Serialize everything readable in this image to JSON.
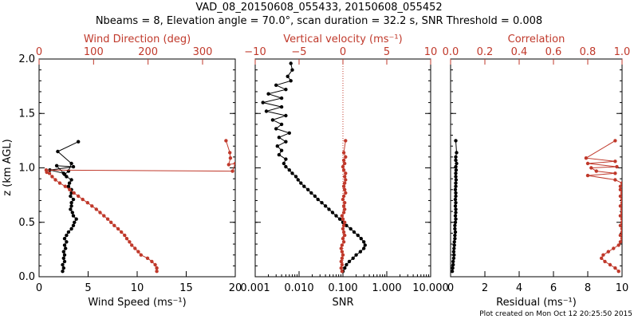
{
  "title_line1": "VAD_08_20150608_055433, 20150608_055452",
  "title_line2": "Nbeams = 8, Elevation angle = 70.0°, scan duration = 32.2 s, SNR Threshold = 0.008",
  "footer": "Plot created on Mon Oct 12 20:25:50 2015",
  "ylabel": "z (km AGL)",
  "colors": {
    "black": "#000000",
    "red": "#c0392b"
  },
  "chart_data": [
    {
      "type": "line",
      "panel": "wind",
      "xlabel": "Wind Speed (ms⁻¹)",
      "xlim": [
        0,
        20
      ],
      "xticks": [
        "0",
        "5",
        "10",
        "15",
        "20"
      ],
      "top_label": "Wind Direction (deg)",
      "top_lim": [
        0,
        360
      ],
      "top_ticks": [
        "0",
        "100",
        "200",
        "300"
      ],
      "top_tick_values": [
        0,
        100,
        200,
        300
      ],
      "ylim": [
        0,
        2
      ],
      "yticks": [
        "0.0",
        "0.5",
        "1.0",
        "1.5",
        "2.0"
      ],
      "series": [
        {
          "name": "Wind Speed",
          "color": "#000000",
          "axis": "bottom",
          "x": [
            2.4,
            2.5,
            2.4,
            2.6,
            2.5,
            2.6,
            2.5,
            2.7,
            2.6,
            2.8,
            2.6,
            2.8,
            3.0,
            3.3,
            3.5,
            3.6,
            3.8,
            3.5,
            3.4,
            3.2,
            3.3,
            3.3,
            3.5,
            3.2,
            3.3,
            3.3,
            3.0,
            3.1,
            3.3,
            2.8,
            2.5,
            1.1,
            3.5,
            1.8,
            2.6,
            3.0,
            3.3,
            1.9,
            4.0
          ],
          "y": [
            0.05,
            0.08,
            0.11,
            0.14,
            0.17,
            0.2,
            0.23,
            0.26,
            0.29,
            0.32,
            0.35,
            0.38,
            0.41,
            0.44,
            0.47,
            0.5,
            0.53,
            0.56,
            0.59,
            0.62,
            0.65,
            0.68,
            0.71,
            0.74,
            0.77,
            0.8,
            0.83,
            0.86,
            0.89,
            0.92,
            0.95,
            0.98,
            1.01,
            1.02,
            0.94,
            0.97,
            1.04,
            1.15,
            1.24
          ]
        },
        {
          "name": "Wind Direction",
          "color": "#c0392b",
          "axis": "top",
          "x": [
            216,
            216,
            213,
            207,
            199,
            187,
            182,
            176,
            170,
            166,
            161,
            157,
            151,
            145,
            138,
            132,
            126,
            119,
            112,
            105,
            97,
            89,
            80,
            72,
            64,
            56,
            48,
            38,
            30,
            24,
            19,
            14,
            13,
            355,
            360,
            348,
            351,
            350,
            343
          ],
          "y": [
            0.05,
            0.08,
            0.11,
            0.14,
            0.17,
            0.2,
            0.23,
            0.26,
            0.29,
            0.32,
            0.35,
            0.38,
            0.41,
            0.44,
            0.47,
            0.5,
            0.53,
            0.56,
            0.59,
            0.62,
            0.65,
            0.68,
            0.71,
            0.74,
            0.77,
            0.8,
            0.83,
            0.86,
            0.89,
            0.92,
            0.95,
            0.96,
            0.98,
            0.97,
            1.04,
            1.03,
            1.09,
            1.14,
            1.25
          ]
        }
      ]
    },
    {
      "type": "line",
      "panel": "vertical",
      "xscale_bottom": "log",
      "xlabel": "SNR",
      "xlim": [
        0.001,
        10
      ],
      "xticks": [
        "0.001",
        "0.010",
        "0.100",
        "1.000",
        "10.000"
      ],
      "xtick_values": [
        0.001,
        0.01,
        0.1,
        1,
        10
      ],
      "top_label": "Vertical velocity (ms⁻¹)",
      "top_lim": [
        -10,
        10
      ],
      "top_ticks": [
        "−10",
        "−5",
        "0",
        "5",
        "10"
      ],
      "top_tick_values": [
        -10,
        -5,
        0,
        5,
        10
      ],
      "ylim": [
        0,
        2
      ],
      "series": [
        {
          "name": "SNR",
          "color": "#000000",
          "axis": "bottom",
          "x": [
            0.1,
            0.11,
            0.12,
            0.14,
            0.17,
            0.2,
            0.25,
            0.3,
            0.32,
            0.3,
            0.26,
            0.22,
            0.18,
            0.15,
            0.12,
            0.1,
            0.085,
            0.07,
            0.058,
            0.048,
            0.04,
            0.033,
            0.027,
            0.023,
            0.019,
            0.016,
            0.013,
            0.011,
            0.0095,
            0.0085,
            0.007,
            0.006,
            0.005,
            0.0045,
            0.005,
            0.0035,
            0.004,
            0.0032,
            0.005,
            0.0035,
            0.006,
            0.003,
            0.004,
            0.0025,
            0.005,
            0.0018,
            0.004,
            0.0015,
            0.004,
            0.002,
            0.005,
            0.003,
            0.0065,
            0.0055,
            0.007,
            0.0065
          ],
          "y": [
            0.05,
            0.08,
            0.11,
            0.14,
            0.17,
            0.2,
            0.23,
            0.26,
            0.29,
            0.32,
            0.35,
            0.38,
            0.41,
            0.44,
            0.47,
            0.5,
            0.53,
            0.56,
            0.59,
            0.62,
            0.65,
            0.68,
            0.71,
            0.74,
            0.77,
            0.8,
            0.83,
            0.86,
            0.89,
            0.92,
            0.95,
            0.98,
            1.01,
            1.04,
            1.08,
            1.12,
            1.16,
            1.2,
            1.24,
            1.28,
            1.32,
            1.36,
            1.4,
            1.44,
            1.48,
            1.52,
            1.56,
            1.6,
            1.64,
            1.68,
            1.72,
            1.76,
            1.8,
            1.84,
            1.9,
            1.96
          ]
        },
        {
          "name": "Vertical velocity",
          "color": "#c0392b",
          "axis": "top",
          "x": [
            -0.1,
            -0.2,
            -0.1,
            -0.2,
            -0.1,
            0.0,
            -0.1,
            -0.2,
            -0.1,
            0.1,
            0.0,
            0.2,
            0.1,
            0.0,
            0.1,
            0.2,
            0.0,
            -0.1,
            0.1,
            0.2,
            0.1,
            0.2,
            0.0,
            0.1,
            0.3,
            0.2,
            0.1,
            0.2,
            0.3,
            0.2,
            0.3,
            0.1,
            0.0,
            0.2,
            0.1,
            0.3,
            0.1,
            0.3
          ],
          "y": [
            0.05,
            0.08,
            0.11,
            0.14,
            0.17,
            0.2,
            0.23,
            0.26,
            0.29,
            0.32,
            0.35,
            0.38,
            0.41,
            0.44,
            0.47,
            0.5,
            0.53,
            0.56,
            0.59,
            0.62,
            0.65,
            0.68,
            0.71,
            0.74,
            0.77,
            0.8,
            0.83,
            0.86,
            0.89,
            0.92,
            0.95,
            0.98,
            1.01,
            1.04,
            1.07,
            1.1,
            1.14,
            1.25
          ]
        }
      ],
      "reference_line_top": 0
    },
    {
      "type": "line",
      "panel": "residual",
      "xlabel": "Residual (ms⁻¹)",
      "xlim": [
        0,
        10
      ],
      "xticks": [
        "0",
        "2",
        "4",
        "6",
        "8",
        "10"
      ],
      "top_label": "Correlation",
      "top_lim": [
        0,
        1
      ],
      "top_ticks": [
        "0.0",
        "0.2",
        "0.4",
        "0.6",
        "0.8",
        "1.0"
      ],
      "top_tick_values": [
        0,
        0.2,
        0.4,
        0.6,
        0.8,
        1.0
      ],
      "ylim": [
        0,
        2
      ],
      "series": [
        {
          "name": "Residual",
          "color": "#000000",
          "axis": "bottom",
          "x": [
            0.1,
            0.12,
            0.15,
            0.15,
            0.18,
            0.2,
            0.18,
            0.2,
            0.22,
            0.22,
            0.25,
            0.25,
            0.28,
            0.25,
            0.25,
            0.28,
            0.3,
            0.28,
            0.3,
            0.3,
            0.28,
            0.3,
            0.28,
            0.3,
            0.3,
            0.28,
            0.3,
            0.3,
            0.32,
            0.3,
            0.3,
            0.32,
            0.3,
            0.35,
            0.3,
            0.3,
            0.35,
            0.3
          ],
          "y": [
            0.05,
            0.08,
            0.11,
            0.14,
            0.17,
            0.2,
            0.23,
            0.26,
            0.29,
            0.32,
            0.35,
            0.38,
            0.41,
            0.44,
            0.47,
            0.5,
            0.53,
            0.56,
            0.59,
            0.62,
            0.65,
            0.68,
            0.71,
            0.74,
            0.77,
            0.8,
            0.83,
            0.86,
            0.89,
            0.92,
            0.95,
            0.98,
            1.01,
            1.04,
            1.07,
            1.1,
            1.14,
            1.25
          ]
        },
        {
          "name": "Correlation",
          "color": "#c0392b",
          "axis": "top",
          "x": [
            0.98,
            0.96,
            0.93,
            0.9,
            0.88,
            0.89,
            0.92,
            0.95,
            0.98,
            0.99,
            1.0,
            0.99,
            1.0,
            1.0,
            0.99,
            1.0,
            1.0,
            0.99,
            1.0,
            1.0,
            0.99,
            1.0,
            1.0,
            0.99,
            1.0,
            0.99,
            0.99,
            1.0,
            0.96,
            0.8,
            0.96,
            0.85,
            0.82,
            0.97,
            0.8,
            0.96,
            0.79,
            0.96
          ],
          "y": [
            0.05,
            0.08,
            0.11,
            0.14,
            0.17,
            0.2,
            0.23,
            0.26,
            0.29,
            0.32,
            0.35,
            0.38,
            0.41,
            0.44,
            0.47,
            0.5,
            0.53,
            0.56,
            0.59,
            0.62,
            0.65,
            0.68,
            0.71,
            0.74,
            0.77,
            0.8,
            0.83,
            0.86,
            0.89,
            0.93,
            0.95,
            0.97,
            1.0,
            1.01,
            1.04,
            1.06,
            1.09,
            1.25
          ]
        }
      ]
    }
  ]
}
